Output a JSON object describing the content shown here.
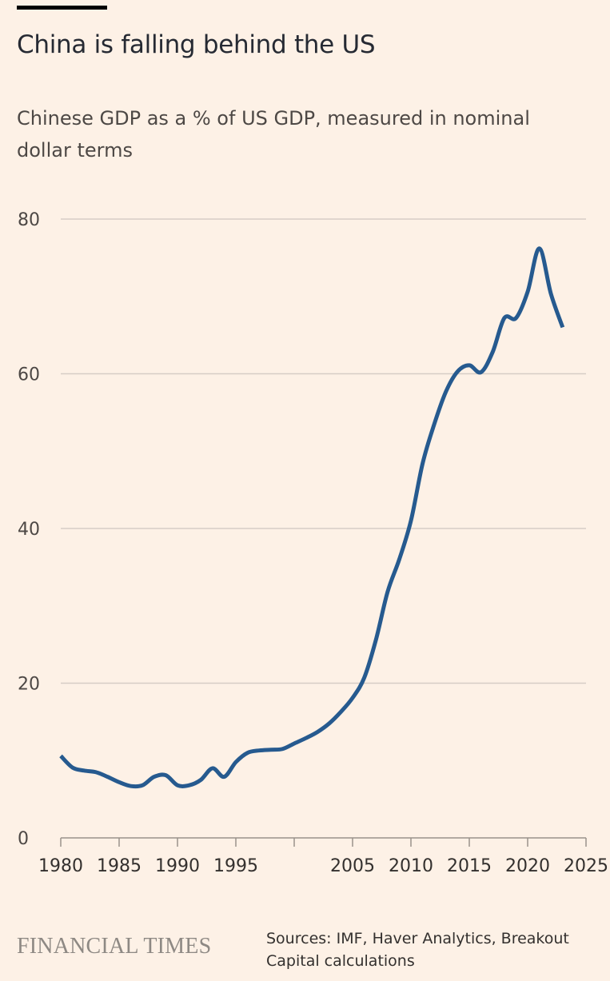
{
  "title": "China is falling behind the US",
  "subtitle": "Chinese GDP as a % of US GDP, measured in nominal dollar terms",
  "footer": {
    "logo": "FINANCIAL TIMES",
    "source": "Sources: IMF, Haver Analytics, Breakout Capital calculations"
  },
  "colors": {
    "line": "#265a8f",
    "background": "#fdf1e6",
    "grid": "#d6cdc5"
  },
  "chart_data": {
    "type": "line",
    "title": "China is falling behind the US",
    "xlabel": "",
    "ylabel": "",
    "xlim": [
      1980,
      2025
    ],
    "ylim": [
      0,
      80
    ],
    "grid": true,
    "yticks": [
      0,
      20,
      40,
      60,
      80
    ],
    "xticks": [
      1980,
      1985,
      1990,
      1995,
      2000,
      2005,
      2010,
      2015,
      2020,
      2025
    ],
    "xtick_labels": [
      "1980",
      "1985",
      "1990",
      "1995",
      "",
      "2005",
      "2010",
      "2015",
      "2020",
      "2025"
    ],
    "x": [
      1980,
      1981,
      1982,
      1983,
      1984,
      1985,
      1986,
      1987,
      1988,
      1989,
      1990,
      1991,
      1992,
      1993,
      1994,
      1995,
      1996,
      1997,
      1998,
      1999,
      2000,
      2001,
      2002,
      2003,
      2004,
      2005,
      2006,
      2007,
      2008,
      2009,
      2010,
      2011,
      2012,
      2013,
      2014,
      2015,
      2016,
      2017,
      2018,
      2019,
      2020,
      2021,
      2022,
      2023
    ],
    "values": [
      10.6,
      9.1,
      8.7,
      8.5,
      7.9,
      7.2,
      6.7,
      6.8,
      7.9,
      8.1,
      6.8,
      6.8,
      7.5,
      9.0,
      7.9,
      9.8,
      11.0,
      11.3,
      11.4,
      11.5,
      12.2,
      12.9,
      13.7,
      14.8,
      16.3,
      18.1,
      20.7,
      25.6,
      31.8,
      36.0,
      41.0,
      48.4,
      53.5,
      57.7,
      60.3,
      61.1,
      60.2,
      62.8,
      67.2,
      67.2,
      70.6,
      76.2,
      70.3,
      66.0
    ]
  }
}
